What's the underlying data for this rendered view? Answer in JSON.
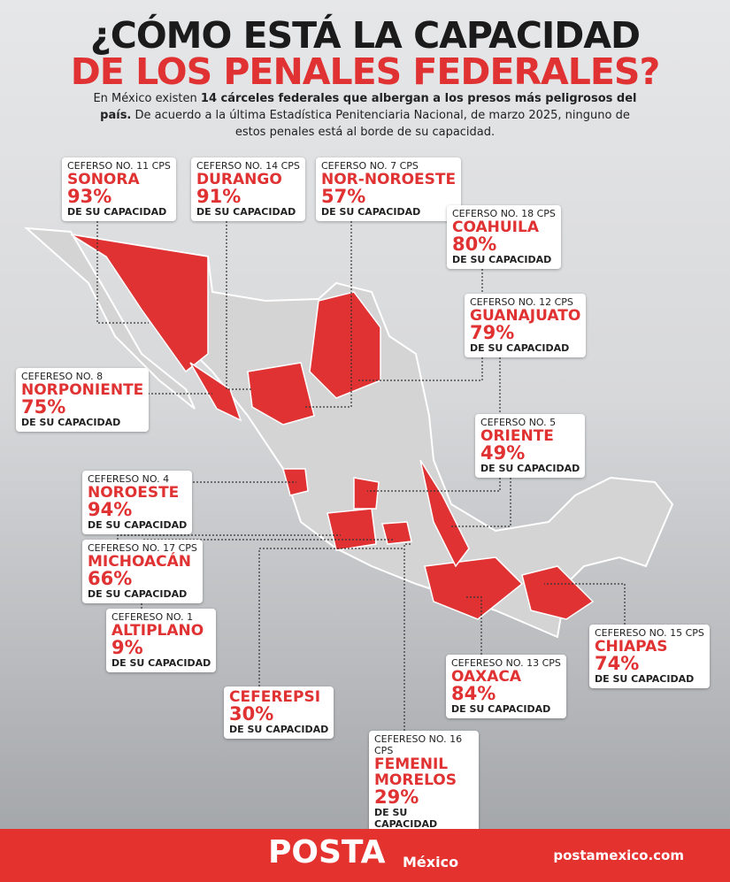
{
  "header": {
    "title": [
      "¿CÓMO ESTÁ LA CAPACIDAD",
      "DE LOS PENALES FEDERALES?"
    ],
    "subtitle": [
      "En México existen ",
      "14 cárceles federales que albergan a los presos más peligrosos del país.",
      " De acuerdo a la última Estadística Penitenciaria Nacional, de marzo 2025, ninguno de estos penales está al borde de su capacidad."
    ]
  },
  "labels": [
    {
      "facility": "CEFERSO NO. 11 CPS",
      "name": "SONORA",
      "percent": "93%",
      "suffix": "DE SU CAPACIDAD"
    },
    {
      "facility": "CEFERSO NO. 14 CPS",
      "name": "DURANGO",
      "percent": "91%",
      "suffix": "DE SU CAPACIDAD"
    },
    {
      "facility": "CEFERSO NO. 7 CPS",
      "name": "NOR-NOROESTE",
      "percent": "57%",
      "suffix": "DE SU CAPACIDAD"
    },
    {
      "facility": "CEFERSO NO. 18 CPS",
      "name": "COAHUILA",
      "percent": "80%",
      "suffix": "DE SU CAPACIDAD"
    },
    {
      "facility": "CEFERSO NO. 12 CPS",
      "name": "GUANAJUATO",
      "percent": "79%",
      "suffix": "DE SU CAPACIDAD"
    },
    {
      "facility": "CEFERESO NO. 8",
      "name": "NORPONIENTE",
      "percent": "75%",
      "suffix": "DE SU CAPACIDAD"
    },
    {
      "facility": "CEFERSO NO. 5",
      "name": "ORIENTE",
      "percent": "49%",
      "suffix": "DE SU CAPACIDAD"
    },
    {
      "facility": "CEFERESO NO. 4",
      "name": "NOROESTE",
      "percent": "94%",
      "suffix": "DE SU CAPACIDAD"
    },
    {
      "facility": "CEFERESO NO. 17 CPS",
      "name": "MICHOACÁN",
      "percent": "66%",
      "suffix": "DE SU CAPACIDAD"
    },
    {
      "facility": "CEFERESO NO. 1",
      "name": "ALTIPLANO",
      "percent": "9%",
      "suffix": "DE SU CAPACIDAD"
    },
    {
      "facility": "CEFERESO NO. 15 CPS",
      "name": "CHIAPAS",
      "percent": "74%",
      "suffix": "DE SU CAPACIDAD"
    },
    {
      "facility": "CEFERESO NO. 13 CPS",
      "name": "OAXACA",
      "percent": "84%",
      "suffix": "DE SU CAPACIDAD"
    },
    {
      "name": "CEFEREPSI",
      "percent": "30%",
      "suffix": "DE SU CAPACIDAD"
    },
    {
      "facility": "CEFERESO NO. 16 CPS",
      "name": "FEMENIL MORELOS",
      "percent": "29%",
      "suffix": "DE SU CAPACIDAD"
    }
  ],
  "footer": {
    "brand": "POSTA",
    "brand_sub": "México",
    "url": "postamexico.com"
  }
}
